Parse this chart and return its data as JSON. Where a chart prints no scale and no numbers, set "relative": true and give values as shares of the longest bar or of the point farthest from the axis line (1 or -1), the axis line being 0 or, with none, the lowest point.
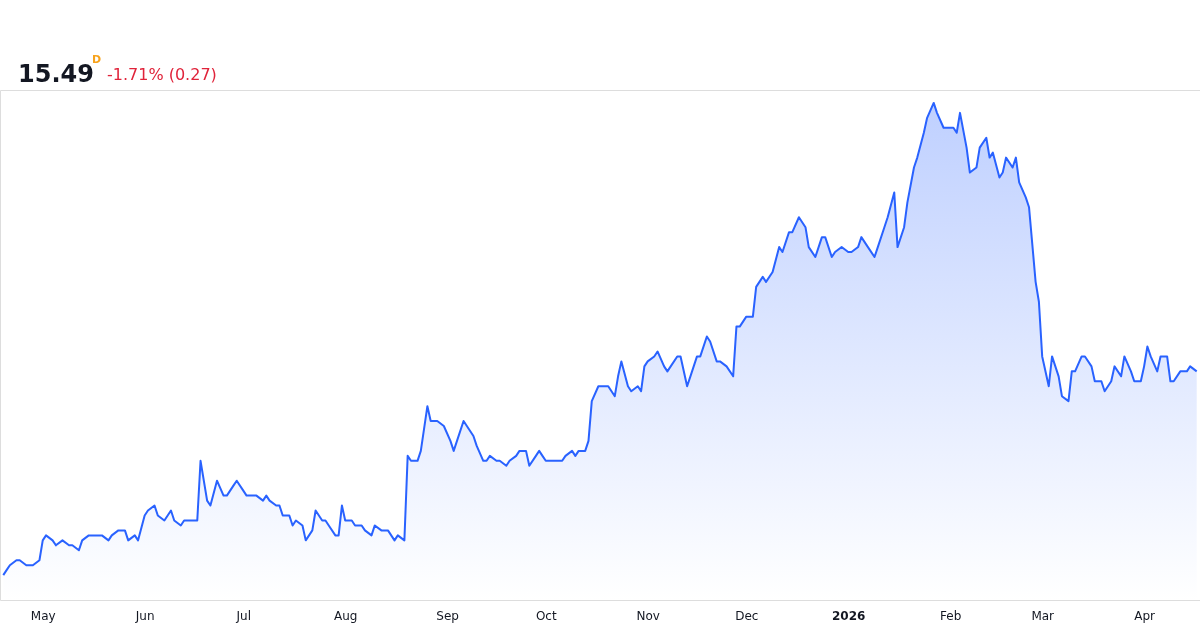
{
  "chart_data": {
    "type": "area",
    "title": "15.49",
    "annotations": [
      "D",
      "-1.71% (0.27)"
    ],
    "relative": true,
    "grid": false,
    "xlim": [
      "2025-04-18",
      "2026-04-18"
    ],
    "xticks": [
      {
        "value": "2025-05-01",
        "label": "May"
      },
      {
        "value": "2025-06-01",
        "label": "Jun"
      },
      {
        "value": "2025-07-01",
        "label": "Jul"
      },
      {
        "value": "2025-08-01",
        "label": "Aug"
      },
      {
        "value": "2025-09-01",
        "label": "Sep"
      },
      {
        "value": "2025-10-01",
        "label": "Oct"
      },
      {
        "value": "2025-11-01",
        "label": "Nov"
      },
      {
        "value": "2025-12-01",
        "label": "Dec"
      },
      {
        "value": "2026-01-01",
        "label": "2026"
      },
      {
        "value": "2026-02-01",
        "label": "Feb"
      },
      {
        "value": "2026-03-01",
        "label": "Mar"
      },
      {
        "value": "2026-04-01",
        "label": "Apr"
      }
    ],
    "series": [
      {
        "color": "#2962ff",
        "x": [
          "2025-04-19",
          "2025-04-20",
          "2025-04-21",
          "2025-04-23",
          "2025-04-24",
          "2025-04-26",
          "2025-04-28",
          "2025-04-30",
          "2025-05-01",
          "2025-05-02",
          "2025-05-04",
          "2025-05-05",
          "2025-05-07",
          "2025-05-09",
          "2025-05-10",
          "2025-05-12",
          "2025-05-13",
          "2025-05-15",
          "2025-05-16",
          "2025-05-18",
          "2025-05-19",
          "2025-05-21",
          "2025-05-22",
          "2025-05-24",
          "2025-05-26",
          "2025-05-27",
          "2025-05-29",
          "2025-05-30",
          "2025-06-01",
          "2025-06-02",
          "2025-06-04",
          "2025-06-05",
          "2025-06-07",
          "2025-06-09",
          "2025-06-10",
          "2025-06-12",
          "2025-06-13",
          "2025-06-15",
          "2025-06-17",
          "2025-06-18",
          "2025-06-20",
          "2025-06-21",
          "2025-06-23",
          "2025-06-25",
          "2025-06-26",
          "2025-06-28",
          "2025-06-29",
          "2025-07-01",
          "2025-07-02",
          "2025-07-04",
          "2025-07-05",
          "2025-07-07",
          "2025-07-08",
          "2025-07-09",
          "2025-07-11",
          "2025-07-12",
          "2025-07-13",
          "2025-07-15",
          "2025-07-16",
          "2025-07-17",
          "2025-07-19",
          "2025-07-20",
          "2025-07-22",
          "2025-07-23",
          "2025-07-25",
          "2025-07-26",
          "2025-07-27",
          "2025-07-29",
          "2025-07-30",
          "2025-07-31",
          "2025-08-01",
          "2025-08-03",
          "2025-08-04",
          "2025-08-06",
          "2025-08-07",
          "2025-08-09",
          "2025-08-10",
          "2025-08-12",
          "2025-08-13",
          "2025-08-14",
          "2025-08-16",
          "2025-08-17",
          "2025-08-19",
          "2025-08-20",
          "2025-08-21",
          "2025-08-23",
          "2025-08-24",
          "2025-08-26",
          "2025-08-27",
          "2025-08-29",
          "2025-08-31",
          "2025-09-02",
          "2025-09-03",
          "2025-09-04",
          "2025-09-06",
          "2025-09-07",
          "2025-09-09",
          "2025-09-10",
          "2025-09-12",
          "2025-09-13",
          "2025-09-14",
          "2025-09-16",
          "2025-09-17",
          "2025-09-19",
          "2025-09-20",
          "2025-09-22",
          "2025-09-23",
          "2025-09-25",
          "2025-09-26",
          "2025-09-28",
          "2025-09-29",
          "2025-09-30",
          "2025-10-01",
          "2025-10-02",
          "2025-10-03",
          "2025-10-05",
          "2025-10-06",
          "2025-10-07",
          "2025-10-09",
          "2025-10-10",
          "2025-10-11",
          "2025-10-13",
          "2025-10-14",
          "2025-10-15",
          "2025-10-17",
          "2025-10-18",
          "2025-10-19",
          "2025-10-20",
          "2025-10-22",
          "2025-10-23",
          "2025-10-24",
          "2025-10-26",
          "2025-10-27",
          "2025-10-29",
          "2025-10-30",
          "2025-10-31",
          "2025-11-01",
          "2025-11-03",
          "2025-11-04",
          "2025-11-06",
          "2025-11-07",
          "2025-11-08",
          "2025-11-10",
          "2025-11-11",
          "2025-11-13",
          "2025-11-14",
          "2025-11-16",
          "2025-11-17",
          "2025-11-19",
          "2025-11-20",
          "2025-11-22",
          "2025-11-23",
          "2025-11-25",
          "2025-11-27",
          "2025-11-28",
          "2025-11-29",
          "2025-12-01",
          "2025-12-03",
          "2025-12-04",
          "2025-12-06",
          "2025-12-07",
          "2025-12-09",
          "2025-12-11",
          "2025-12-12",
          "2025-12-14",
          "2025-12-15",
          "2025-12-17",
          "2025-12-19",
          "2025-12-20",
          "2025-12-22",
          "2025-12-24",
          "2025-12-25",
          "2025-12-27",
          "2025-12-28",
          "2025-12-30",
          "2026-01-01",
          "2026-01-02",
          "2026-01-04",
          "2026-01-05",
          "2026-01-07",
          "2026-01-09",
          "2026-01-10",
          "2026-01-12",
          "2026-01-13",
          "2026-01-15",
          "2026-01-16",
          "2026-01-18",
          "2026-01-19",
          "2026-01-21",
          "2026-01-22",
          "2026-01-24",
          "2026-01-25",
          "2026-01-27",
          "2026-01-28",
          "2026-01-30",
          "2026-02-02",
          "2026-02-03",
          "2026-02-04",
          "2026-02-06",
          "2026-02-07",
          "2026-02-09",
          "2026-02-10",
          "2026-02-12",
          "2026-02-13",
          "2026-02-14",
          "2026-02-16",
          "2026-02-17",
          "2026-02-18",
          "2026-02-20",
          "2026-02-21",
          "2026-02-22",
          "2026-02-24",
          "2026-02-25",
          "2026-02-27",
          "2026-02-28",
          "2026-03-01",
          "2026-03-03",
          "2026-03-04",
          "2026-03-06",
          "2026-03-07",
          "2026-03-09",
          "2026-03-10",
          "2026-03-11",
          "2026-03-13",
          "2026-03-14",
          "2026-03-16",
          "2026-03-17",
          "2026-03-19",
          "2026-03-20",
          "2026-03-22",
          "2026-03-23",
          "2026-03-25",
          "2026-03-26",
          "2026-03-28",
          "2026-03-29",
          "2026-03-31",
          "2026-04-01",
          "2026-04-02",
          "2026-04-03",
          "2026-04-05",
          "2026-04-06",
          "2026-04-08",
          "2026-04-09",
          "2026-04-10",
          "2026-04-12",
          "2026-04-14",
          "2026-04-15",
          "2026-04-17"
        ],
        "values": [
          0.05,
          0.06,
          0.07,
          0.08,
          0.08,
          0.07,
          0.07,
          0.08,
          0.12,
          0.13,
          0.12,
          0.11,
          0.12,
          0.11,
          0.11,
          0.1,
          0.12,
          0.13,
          0.13,
          0.13,
          0.13,
          0.12,
          0.13,
          0.14,
          0.14,
          0.12,
          0.13,
          0.12,
          0.17,
          0.18,
          0.19,
          0.17,
          0.16,
          0.18,
          0.16,
          0.15,
          0.16,
          0.16,
          0.16,
          0.28,
          0.2,
          0.19,
          0.24,
          0.21,
          0.21,
          0.23,
          0.24,
          0.22,
          0.21,
          0.21,
          0.21,
          0.2,
          0.21,
          0.2,
          0.19,
          0.19,
          0.17,
          0.17,
          0.15,
          0.16,
          0.15,
          0.12,
          0.14,
          0.18,
          0.16,
          0.16,
          0.15,
          0.13,
          0.13,
          0.19,
          0.16,
          0.16,
          0.15,
          0.15,
          0.14,
          0.13,
          0.15,
          0.14,
          0.14,
          0.14,
          0.12,
          0.13,
          0.12,
          0.29,
          0.28,
          0.28,
          0.3,
          0.39,
          0.36,
          0.36,
          0.35,
          0.32,
          0.3,
          0.32,
          0.36,
          0.35,
          0.33,
          0.31,
          0.28,
          0.28,
          0.29,
          0.28,
          0.28,
          0.27,
          0.28,
          0.29,
          0.3,
          0.3,
          0.27,
          0.29,
          0.3,
          0.29,
          0.28,
          0.28,
          0.28,
          0.28,
          0.28,
          0.29,
          0.3,
          0.29,
          0.3,
          0.3,
          0.32,
          0.4,
          0.43,
          0.43,
          0.43,
          0.43,
          0.41,
          0.45,
          0.48,
          0.43,
          0.42,
          0.43,
          0.42,
          0.47,
          0.48,
          0.49,
          0.5,
          0.47,
          0.46,
          0.47,
          0.49,
          0.49,
          0.43,
          0.45,
          0.49,
          0.49,
          0.53,
          0.52,
          0.48,
          0.48,
          0.47,
          0.45,
          0.55,
          0.55,
          0.57,
          0.57,
          0.63,
          0.65,
          0.64,
          0.66,
          0.71,
          0.7,
          0.74,
          0.74,
          0.77,
          0.75,
          0.71,
          0.69,
          0.73,
          0.73,
          0.69,
          0.7,
          0.71,
          0.7,
          0.7,
          0.71,
          0.73,
          0.71,
          0.69,
          0.71,
          0.75,
          0.77,
          0.82,
          0.71,
          0.75,
          0.8,
          0.87,
          0.89,
          0.94,
          0.97,
          1.0,
          0.98,
          0.95,
          0.95,
          0.94,
          0.98,
          0.91,
          0.86,
          0.87,
          0.91,
          0.93,
          0.89,
          0.9,
          0.85,
          0.86,
          0.89,
          0.87,
          0.89,
          0.84,
          0.81,
          0.79,
          0.64,
          0.6,
          0.49,
          0.43,
          0.49,
          0.45,
          0.41,
          0.4,
          0.46,
          0.46,
          0.49,
          0.49,
          0.47,
          0.44,
          0.44,
          0.42,
          0.44,
          0.47,
          0.45,
          0.49,
          0.46,
          0.44,
          0.44,
          0.47,
          0.51,
          0.49,
          0.46,
          0.49,
          0.49,
          0.44,
          0.44,
          0.46,
          0.46,
          0.47,
          0.46
        ]
      }
    ]
  }
}
